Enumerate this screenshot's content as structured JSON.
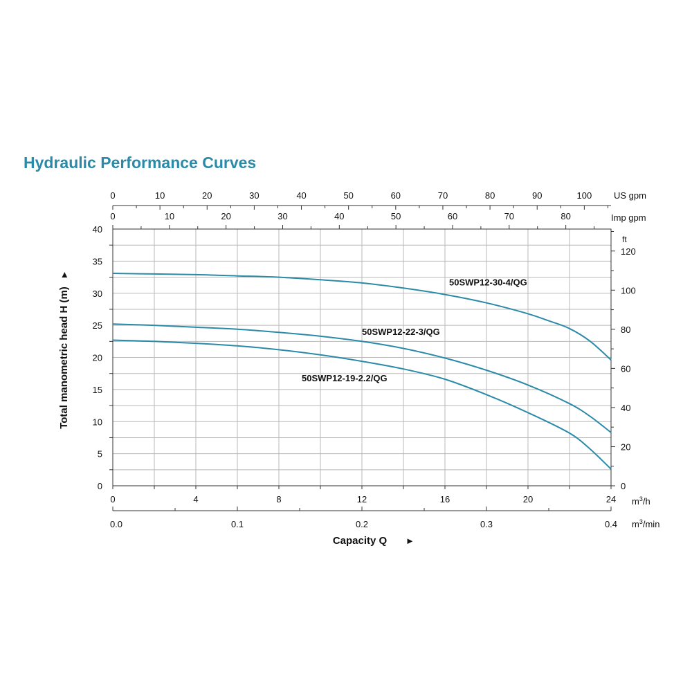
{
  "title": "Hydraulic Performance Curves",
  "chart_data": {
    "type": "line",
    "title": "Hydraulic Performance Curves",
    "xlabel": "Capacity Q",
    "ylabel": "Total manometric head H (m)",
    "x_unit": "m³/h",
    "xlim": [
      0,
      24
    ],
    "ylim": [
      0,
      40
    ],
    "x_ticks": [
      0,
      4,
      8,
      12,
      16,
      20,
      24
    ],
    "y_ticks": [
      0,
      5,
      10,
      15,
      20,
      25,
      30,
      35,
      40
    ],
    "grid": true,
    "arrow": "►",
    "secondary_axes": {
      "us_gpm": {
        "unit": "US gpm",
        "ticks": [
          0,
          10,
          20,
          30,
          40,
          50,
          60,
          70,
          80,
          90,
          100
        ]
      },
      "imp_gpm": {
        "unit": "Imp gpm",
        "ticks": [
          0,
          10,
          20,
          30,
          40,
          50,
          60,
          70,
          80
        ]
      },
      "m3_min": {
        "unit": "m³/min",
        "ticks": [
          "0.0",
          "0.1",
          "0.2",
          "0.3",
          "0.4"
        ]
      },
      "ft": {
        "unit": "ft",
        "ticks": [
          0,
          20,
          40,
          60,
          80,
          100,
          120
        ]
      }
    },
    "series": [
      {
        "name": "50SWP12-30-4/QG",
        "color": "#2a8aa8",
        "x": [
          0,
          2,
          4,
          6,
          8,
          10,
          12,
          14,
          16,
          18,
          20,
          21,
          22,
          23,
          24
        ],
        "y": [
          33.1,
          33.0,
          32.9,
          32.7,
          32.5,
          32.1,
          31.6,
          30.8,
          29.8,
          28.5,
          26.8,
          25.7,
          24.5,
          22.5,
          19.6
        ]
      },
      {
        "name": "50SWP12-22-3/QG",
        "color": "#2a8aa8",
        "x": [
          0,
          2,
          4,
          6,
          8,
          10,
          12,
          14,
          16,
          18,
          20,
          22,
          23,
          24
        ],
        "y": [
          25.2,
          25.0,
          24.7,
          24.4,
          23.9,
          23.3,
          22.5,
          21.4,
          19.9,
          18.0,
          15.7,
          12.8,
          10.8,
          8.3
        ]
      },
      {
        "name": "50SWP12-19-2.2/QG",
        "color": "#2a8aa8",
        "x": [
          0,
          2,
          4,
          6,
          8,
          10,
          12,
          14,
          16,
          18,
          20,
          22,
          23,
          24
        ],
        "y": [
          22.7,
          22.5,
          22.2,
          21.8,
          21.2,
          20.4,
          19.4,
          18.2,
          16.6,
          14.2,
          11.4,
          8.2,
          5.7,
          2.6
        ]
      }
    ]
  }
}
